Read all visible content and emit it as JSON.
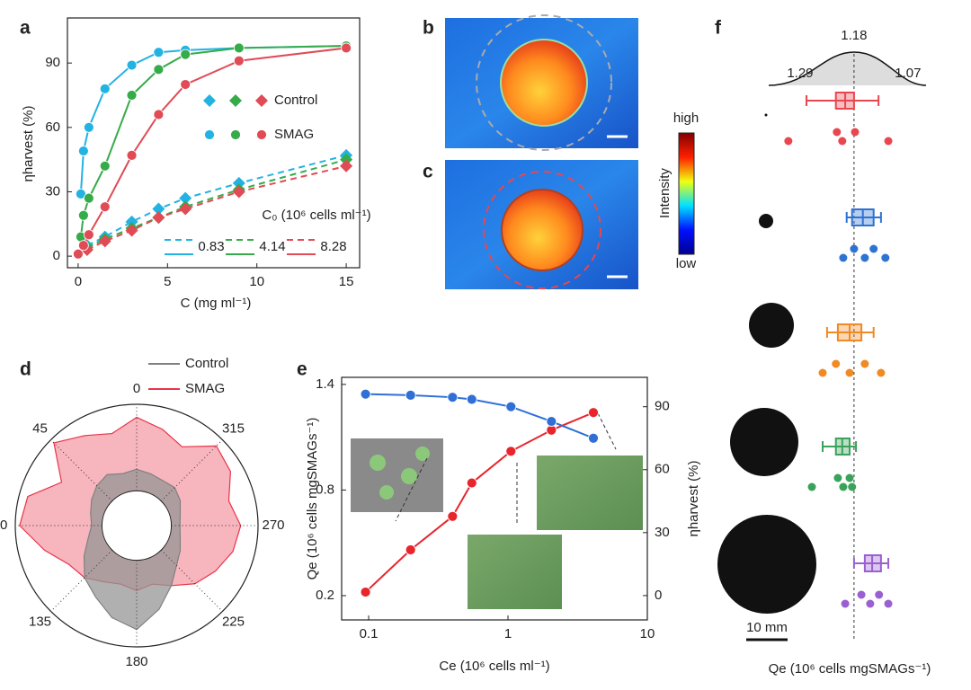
{
  "chart_data": [
    {
      "type": "line",
      "panel": "a",
      "xlabel": "C (mg ml⁻¹)",
      "ylabel": "ηharvest (%)",
      "xlim": [
        -0.6,
        15.75
      ],
      "ylim": [
        -5.4,
        111
      ],
      "xticks": [
        0,
        5,
        10,
        15
      ],
      "yticks": [
        0,
        30,
        60,
        90
      ],
      "groups": [
        {
          "name": "Control",
          "marker": "diamond",
          "dashed": true
        },
        {
          "name": "SMAG",
          "marker": "circle",
          "dashed": false
        }
      ],
      "legend_title": "C₀ (10⁶ cells ml⁻¹)",
      "levels": [
        0.83,
        4.14,
        8.28
      ],
      "colors": [
        "#22b3e3",
        "#36ab4a",
        "#e04b55"
      ],
      "series": [
        {
          "group": 0,
          "level": 0,
          "x": [
            0.5,
            1.5,
            3,
            4.5,
            6,
            9,
            15
          ],
          "values": [
            5,
            9,
            16,
            22,
            27,
            34,
            47
          ]
        },
        {
          "group": 0,
          "level": 1,
          "x": [
            0.5,
            1.5,
            3,
            4.5,
            6,
            9,
            15
          ],
          "values": [
            4,
            8,
            13,
            18,
            23,
            31,
            45
          ]
        },
        {
          "group": 0,
          "level": 2,
          "x": [
            0.5,
            1.5,
            3,
            4.5,
            6,
            9,
            15
          ],
          "values": [
            3,
            7,
            12,
            18,
            22,
            30,
            42
          ]
        },
        {
          "group": 1,
          "level": 0,
          "x": [
            0.15,
            0.3,
            0.6,
            1.5,
            3,
            4.5,
            6,
            9,
            15
          ],
          "values": [
            29,
            49,
            60,
            78,
            89,
            95,
            96,
            97,
            98
          ]
        },
        {
          "group": 1,
          "level": 1,
          "x": [
            0.15,
            0.3,
            0.6,
            1.5,
            3,
            4.5,
            6,
            9,
            15
          ],
          "values": [
            9,
            19,
            27,
            42,
            75,
            87,
            94,
            97,
            98
          ]
        },
        {
          "group": 1,
          "level": 2,
          "x": [
            0,
            0.3,
            0.6,
            1.5,
            3,
            4.5,
            6,
            9,
            15
          ],
          "values": [
            1,
            5,
            10,
            23,
            47,
            66,
            80,
            91,
            97
          ]
        }
      ]
    },
    {
      "type": "polar",
      "panel": "d",
      "rlim": [
        -0.4,
        1
      ],
      "direction": "counterclockwise",
      "zero": "top",
      "thetaticks": [
        0,
        45,
        90,
        135,
        180,
        225,
        270,
        315
      ],
      "theta": [
        0,
        15,
        30,
        45,
        60,
        75,
        90,
        105,
        120,
        135,
        150,
        165,
        180,
        195,
        210,
        225,
        240,
        255,
        270,
        285,
        300,
        315,
        330,
        345
      ],
      "series": [
        {
          "name": "Control",
          "color": "#808080",
          "values": [
            0.25,
            0.22,
            0.28,
            0.25,
            0.2,
            0.15,
            0.12,
            0.18,
            0.3,
            0.45,
            0.55,
            0.7,
            0.8,
            0.6,
            0.4,
            0.25,
            0.18,
            0.12,
            0.1,
            0.12,
            0.18,
            0.22,
            0.2,
            0.22
          ]
        },
        {
          "name": "SMAG",
          "color": "#e8344a",
          "values": [
            0.85,
            0.7,
            0.8,
            0.95,
            0.6,
            0.9,
            0.95,
            0.7,
            0.5,
            0.45,
            0.35,
            0.3,
            0.35,
            0.3,
            0.4,
            0.55,
            0.65,
            0.75,
            0.8,
            0.7,
            0.85,
            0.9,
            0.65,
            0.75
          ]
        }
      ]
    },
    {
      "type": "dual",
      "panel": "e",
      "xlog": true,
      "xlim": [
        0.064,
        10
      ],
      "xticks": [
        0.1,
        1,
        10
      ],
      "ylim": [
        0.062,
        1.44
      ],
      "yticks": [
        0.2,
        0.8,
        1.4
      ],
      "y2lim": [
        -11.6,
        104
      ],
      "y2ticks": [
        0,
        30,
        60,
        90
      ],
      "xlabel": "Ce (10⁶ cells ml⁻¹)",
      "ylabel": "Qe (10⁶ cells mgSMAGs⁻¹)",
      "y2label": "ηharvest (%)",
      "series": [
        {
          "color": "#e8242c",
          "x": [
            0.095,
            0.2,
            0.4,
            0.55,
            1.05,
            2.05,
            4.1
          ],
          "values": [
            0.22,
            0.46,
            0.65,
            0.84,
            1.02,
            1.14,
            1.24
          ]
        },
        {
          "color": "#2f6fd6",
          "axis": "y2",
          "x": [
            0.095,
            0.2,
            0.4,
            0.55,
            1.05,
            2.05,
            4.1
          ],
          "values": [
            96,
            95.5,
            94.5,
            93.5,
            90,
            83,
            75
          ]
        }
      ]
    },
    {
      "type": "box",
      "panel": "f",
      "xlim": [
        1.455,
        0.978
      ],
      "xticks": [
        1.29,
        1.18,
        1.07
      ],
      "reference": 1.18,
      "xlabel": "Qe (10⁶ cells mgSMAGs⁻¹)",
      "scale_bar": "10 mm",
      "boxes": [
        {
          "color": "#e8474f",
          "whisker": [
            1.277,
            1.13
          ],
          "box": [
            1.217,
            1.18
          ],
          "median": 1.198,
          "points": [
            1.314,
            1.215,
            1.204,
            1.178,
            1.11
          ]
        },
        {
          "color": "#2f73d2",
          "whisker": [
            1.195,
            1.125
          ],
          "box": [
            1.184,
            1.14
          ],
          "median": 1.162,
          "points": [
            1.202,
            1.18,
            1.158,
            1.14,
            1.116
          ]
        },
        {
          "color": "#f08a24",
          "whisker": [
            1.235,
            1.14
          ],
          "box": [
            1.213,
            1.165
          ],
          "median": 1.189,
          "points": [
            1.244,
            1.217,
            1.189,
            1.158,
            1.125
          ]
        },
        {
          "color": "#3aa25a",
          "whisker": [
            1.244,
            1.176
          ],
          "box": [
            1.217,
            1.189
          ],
          "median": 1.204,
          "points": [
            1.266,
            1.213,
            1.202,
            1.189,
            1.184
          ]
        },
        {
          "color": "#9a5fd0",
          "whisker": [
            1.18,
            1.11
          ],
          "box": [
            1.158,
            1.125
          ],
          "median": 1.143,
          "points": [
            1.198,
            1.165,
            1.147,
            1.129,
            1.11
          ]
        }
      ]
    }
  ],
  "images": [
    {
      "panel": "b"
    },
    {
      "panel": "c"
    }
  ],
  "colorbar": {
    "title": "Intensity",
    "high": "high",
    "low": "low"
  }
}
